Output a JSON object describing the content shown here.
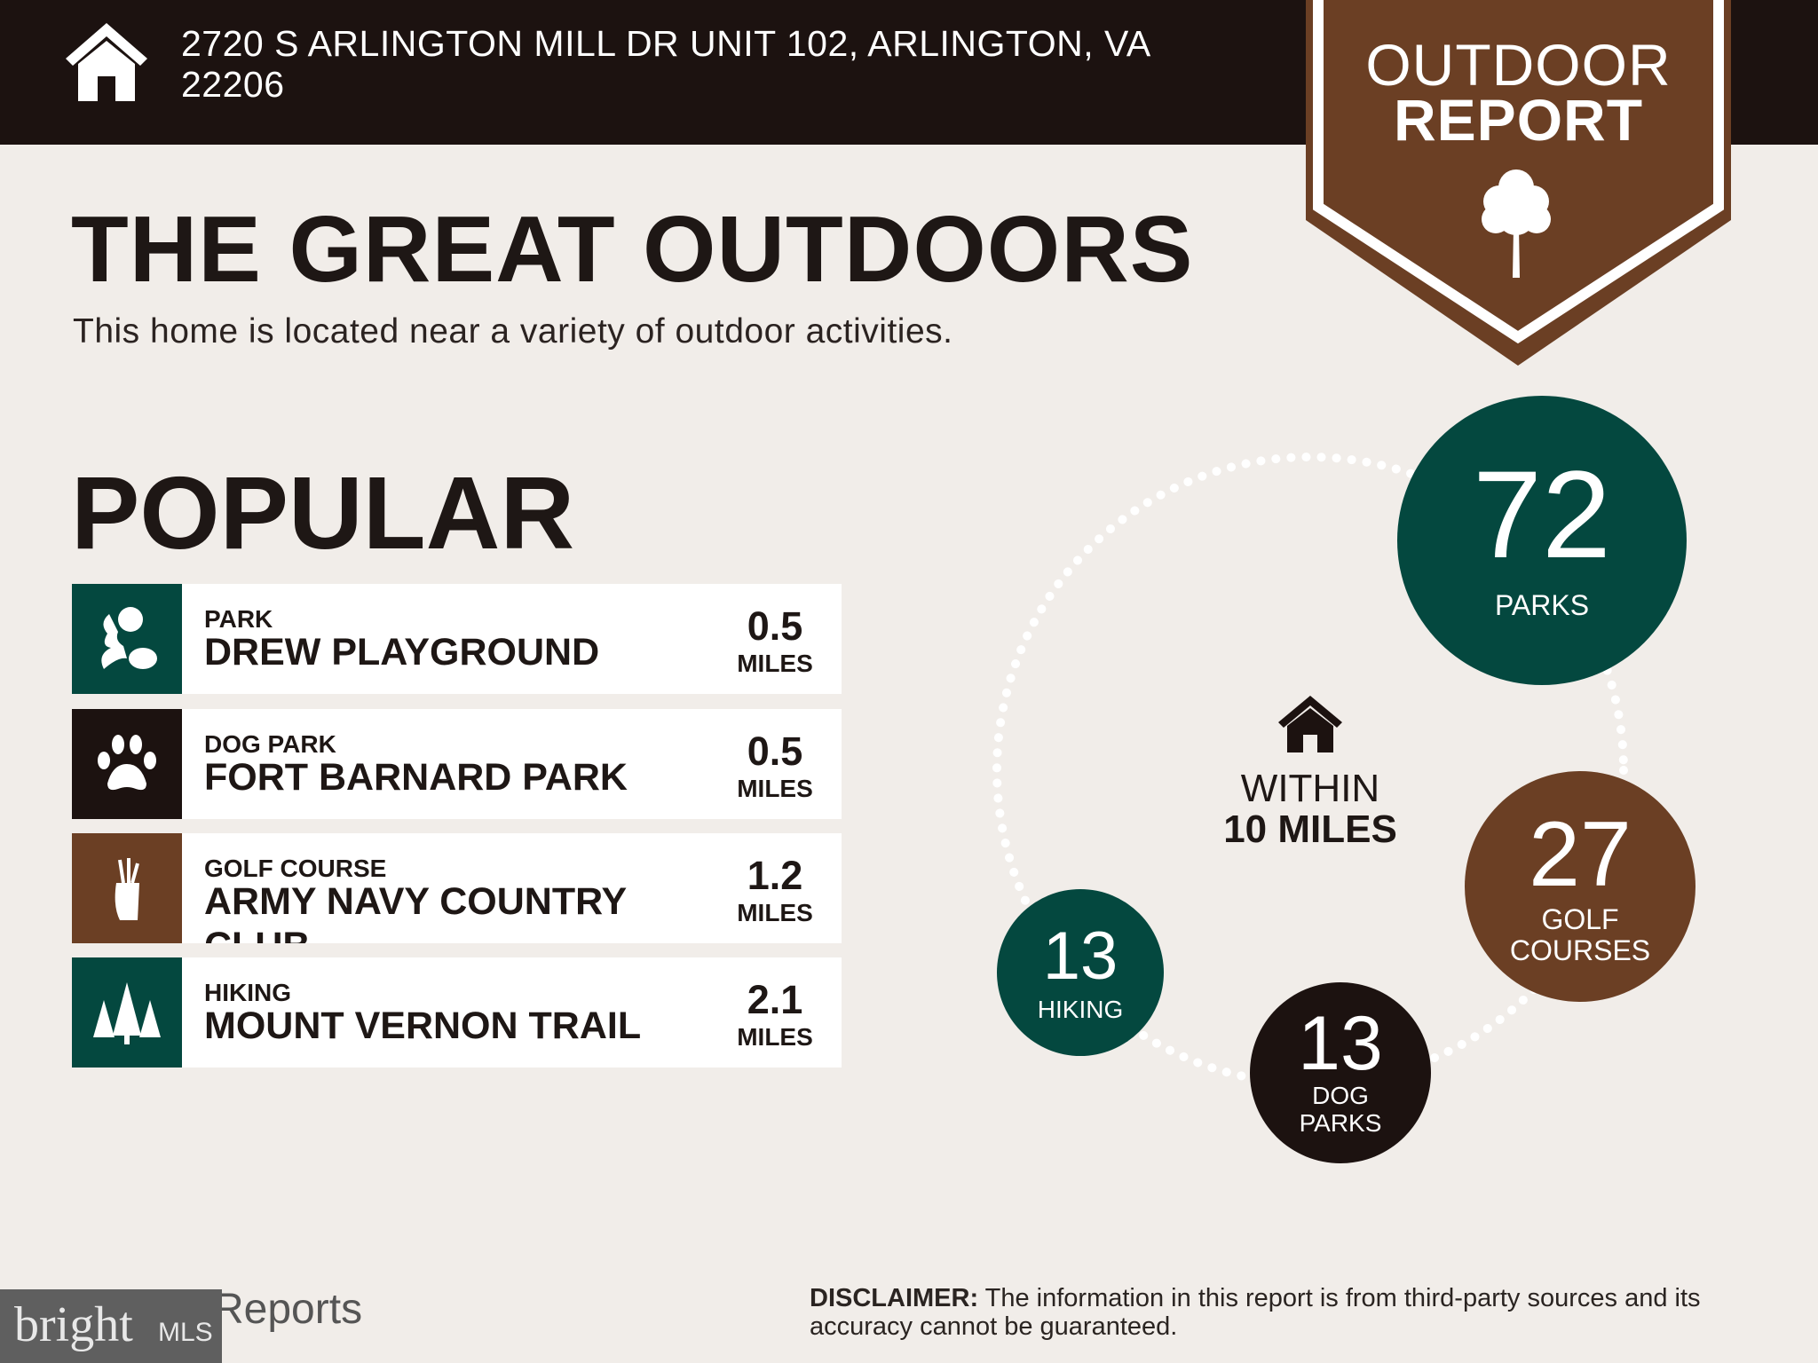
{
  "header": {
    "address": "2720 S ARLINGTON MILL DR UNIT 102, ARLINGTON, VA 22206"
  },
  "badge": {
    "line1": "OUTDOOR",
    "line2": "REPORT"
  },
  "main": {
    "title": "THE GREAT OUTDOORS",
    "subtitle": "This home is located near a variety of outdoor activities.",
    "popular_heading": "POPULAR",
    "popular": [
      {
        "category": "PARK",
        "name": "DREW PLAYGROUND",
        "distance": "0.5",
        "unit": "MILES",
        "icon": "park-icon",
        "color": "#04483f"
      },
      {
        "category": "DOG PARK",
        "name": "FORT BARNARD PARK",
        "distance": "0.5",
        "unit": "MILES",
        "icon": "paw-icon",
        "color": "#1c1210"
      },
      {
        "category": "GOLF COURSE",
        "name": "ARMY NAVY COUNTRY CLUB",
        "distance": "1.2",
        "unit": "MILES",
        "icon": "golf-bag-icon",
        "color": "#6b3f24"
      },
      {
        "category": "HIKING",
        "name": "MOUNT VERNON TRAIL",
        "distance": "2.1",
        "unit": "MILES",
        "icon": "pine-trees-icon",
        "color": "#04483f"
      }
    ]
  },
  "summary": {
    "within_line1": "WITHIN",
    "within_line2": "10 MILES",
    "parks": {
      "count": "72",
      "label": "PARKS",
      "color": "#04483f"
    },
    "golf": {
      "count": "27",
      "label": "GOLF COURSES",
      "color": "#6b3f24"
    },
    "dog_parks": {
      "count": "13",
      "label": "DOG PARKS",
      "color": "#1c1210"
    },
    "hiking": {
      "count": "13",
      "label": "HIKING",
      "color": "#04483f"
    }
  },
  "footer": {
    "logo_text": "bright",
    "logo_suffix": "MLS",
    "reports_text": "Reports",
    "disclaimer_label": "DISCLAIMER:",
    "disclaimer_text": " The information in this report is from third-party sources and its accuracy cannot be guaranteed."
  }
}
